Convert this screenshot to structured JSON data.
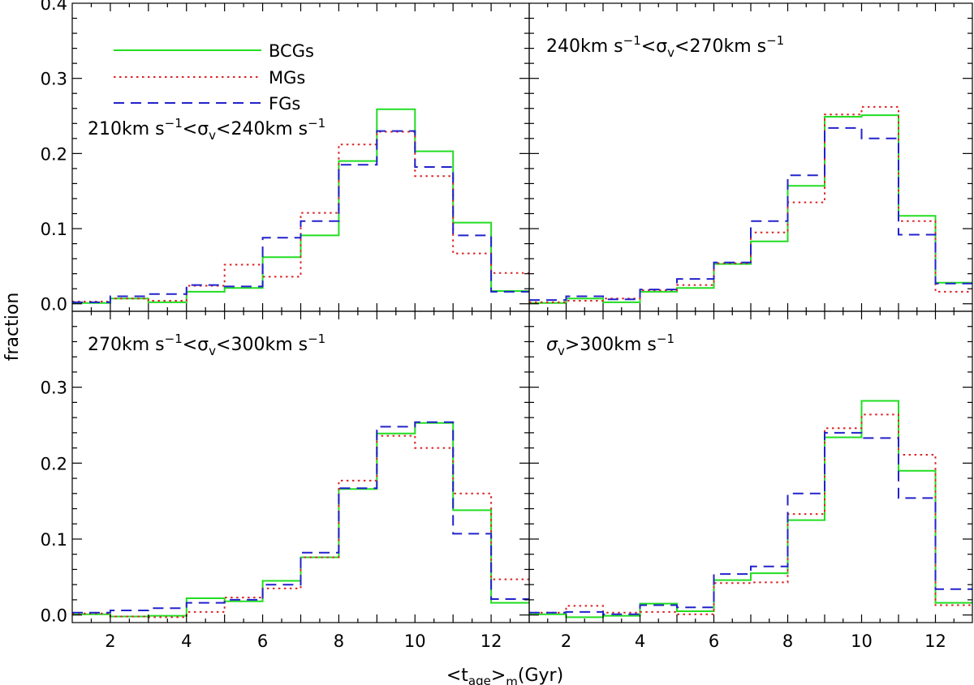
{
  "figure": {
    "ylabel": "fraction",
    "xlabel_parts": [
      "<t",
      "age",
      ">",
      "m",
      "(Gyr)"
    ]
  },
  "legend": [
    {
      "label": "BCGs",
      "color": "#22dd22",
      "style": "solid"
    },
    {
      "label": "MGs",
      "color": "#dd2222",
      "style": "dotted"
    },
    {
      "label": "FGs",
      "color": "#2222cc",
      "style": "dashed"
    }
  ],
  "chart_data": {
    "type": "histogram-step",
    "xlim": [
      1,
      13
    ],
    "x_ticks": [
      2,
      4,
      6,
      8,
      10,
      12
    ],
    "bin_edges": [
      1,
      2,
      3,
      4,
      5,
      6,
      7,
      8,
      9,
      10,
      11,
      12,
      13
    ],
    "series_names": [
      "BCGs",
      "MGs",
      "FGs"
    ],
    "panels": [
      {
        "label_parts": [
          "210km s",
          "−1",
          "<σ",
          "v",
          "<240km s",
          "−1"
        ],
        "ylim": [
          -0.01,
          0.4
        ],
        "y_ticks": [
          0.0,
          0.1,
          0.2,
          0.3,
          0.4
        ],
        "series": [
          {
            "name": "BCGs",
            "values": [
              0.001,
              0.007,
              0.002,
              0.016,
              0.021,
              0.062,
              0.091,
              0.19,
              0.259,
              0.203,
              0.108,
              0.017
            ]
          },
          {
            "name": "MGs",
            "values": [
              0.003,
              0.007,
              0.004,
              0.024,
              0.052,
              0.036,
              0.121,
              0.212,
              0.229,
              0.17,
              0.067,
              0.041
            ]
          },
          {
            "name": "FGs",
            "values": [
              0.002,
              0.01,
              0.013,
              0.025,
              0.023,
              0.088,
              0.11,
              0.185,
              0.23,
              0.182,
              0.091,
              0.016
            ]
          }
        ]
      },
      {
        "label_parts": [
          "240km s",
          "−1",
          "<σ",
          "v",
          "<270km s",
          "−1"
        ],
        "ylim": [
          -0.01,
          0.4
        ],
        "y_ticks": [],
        "series": [
          {
            "name": "BCGs",
            "values": [
              0.001,
              0.007,
              0.002,
              0.016,
              0.021,
              0.053,
              0.083,
              0.157,
              0.249,
              0.251,
              0.117,
              0.028
            ]
          },
          {
            "name": "MGs",
            "values": [
              0.002,
              0.004,
              0.007,
              0.018,
              0.025,
              0.054,
              0.095,
              0.135,
              0.252,
              0.262,
              0.11,
              0.016
            ]
          },
          {
            "name": "FGs",
            "values": [
              0.005,
              0.01,
              0.006,
              0.019,
              0.033,
              0.055,
              0.11,
              0.171,
              0.234,
              0.22,
              0.092,
              0.027
            ]
          }
        ]
      },
      {
        "label_parts": [
          "270km s",
          "−1",
          "<σ",
          "v",
          "<300km s",
          "−1"
        ],
        "ylim": [
          -0.01,
          0.4
        ],
        "y_ticks": [
          0.0,
          0.1,
          0.2,
          0.3
        ],
        "series": [
          {
            "name": "BCGs",
            "values": [
              0.001,
              -0.002,
              -0.001,
              0.022,
              0.018,
              0.045,
              0.076,
              0.166,
              0.239,
              0.253,
              0.138,
              0.016
            ]
          },
          {
            "name": "MGs",
            "values": [
              0.002,
              -0.002,
              -0.003,
              0.004,
              0.023,
              0.035,
              0.076,
              0.177,
              0.236,
              0.22,
              0.16,
              0.047
            ]
          },
          {
            "name": "FGs",
            "values": [
              0.003,
              0.006,
              0.009,
              0.016,
              0.02,
              0.04,
              0.082,
              0.167,
              0.248,
              0.254,
              0.107,
              0.021
            ]
          }
        ]
      },
      {
        "label_parts": [
          "σ",
          "v",
          ">300km s",
          "−1"
        ],
        "ylim": [
          -0.01,
          0.4
        ],
        "y_ticks": [],
        "series": [
          {
            "name": "BCGs",
            "values": [
              0.001,
              -0.003,
              -0.001,
              0.015,
              0.005,
              0.046,
              0.055,
              0.125,
              0.234,
              0.282,
              0.19,
              0.016
            ]
          },
          {
            "name": "MGs",
            "values": [
              0.003,
              0.012,
              0.003,
              0.004,
              0.001,
              0.042,
              0.043,
              0.133,
              0.246,
              0.264,
              0.211,
              0.013
            ]
          },
          {
            "name": "FGs",
            "values": [
              0.003,
              0.004,
              0.001,
              0.013,
              0.01,
              0.054,
              0.064,
              0.16,
              0.24,
              0.233,
              0.154,
              0.034
            ]
          }
        ]
      }
    ]
  }
}
